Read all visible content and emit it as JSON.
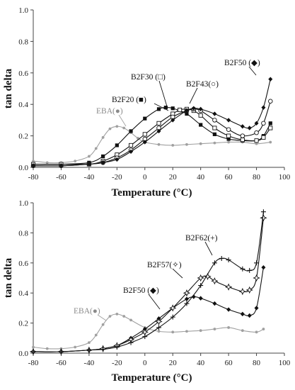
{
  "colors": {
    "dark": "#111111",
    "gray": "#a0a0a0",
    "gray_text": "#8a8a8a"
  },
  "chart_data": [
    {
      "type": "line",
      "xlabel": "Temperature (°C)",
      "ylabel": "tan delta",
      "xlim": [
        -80,
        100
      ],
      "ylim": [
        0,
        1.0
      ],
      "xticks": [
        -80,
        -60,
        -40,
        -20,
        0,
        20,
        40,
        60,
        80,
        100
      ],
      "yticks": [
        "0.0",
        "0.2",
        "0.4",
        "0.6",
        "0.8",
        "1.0"
      ],
      "grid": false,
      "series": [
        {
          "name": "EBA(●)",
          "color": "gray",
          "marker": "dot",
          "x": [
            -80,
            -70,
            -60,
            -50,
            -40,
            -35,
            -30,
            -25,
            -20,
            -15,
            -10,
            -5,
            0,
            10,
            20,
            30,
            40,
            50,
            60,
            70,
            80,
            90
          ],
          "y": [
            0.04,
            0.03,
            0.03,
            0.04,
            0.07,
            0.12,
            0.19,
            0.245,
            0.26,
            0.25,
            0.22,
            0.185,
            0.16,
            0.145,
            0.14,
            0.145,
            0.15,
            0.155,
            0.16,
            0.16,
            0.15,
            0.16
          ]
        },
        {
          "name": "B2F20 (■)",
          "color": "dark",
          "marker": "square",
          "x": [
            -80,
            -60,
            -40,
            -30,
            -20,
            -10,
            0,
            10,
            15,
            20,
            30,
            40,
            50,
            60,
            70,
            80,
            85,
            90
          ],
          "y": [
            0.02,
            0.02,
            0.03,
            0.07,
            0.14,
            0.23,
            0.31,
            0.37,
            0.38,
            0.375,
            0.34,
            0.27,
            0.21,
            0.18,
            0.17,
            0.17,
            0.2,
            0.28
          ]
        },
        {
          "name": "B2F30 (□)",
          "color": "dark",
          "marker": "open-square",
          "x": [
            -80,
            -60,
            -40,
            -30,
            -20,
            -10,
            0,
            10,
            20,
            25,
            30,
            35,
            40,
            50,
            60,
            70,
            80,
            85,
            90
          ],
          "y": [
            0.02,
            0.02,
            0.02,
            0.04,
            0.08,
            0.14,
            0.21,
            0.28,
            0.34,
            0.365,
            0.37,
            0.36,
            0.33,
            0.25,
            0.2,
            0.175,
            0.17,
            0.19,
            0.25
          ]
        },
        {
          "name": "B2F43(○)",
          "color": "dark",
          "marker": "open-circle",
          "x": [
            -80,
            -60,
            -40,
            -30,
            -20,
            -10,
            0,
            10,
            20,
            30,
            35,
            40,
            50,
            60,
            70,
            80,
            85,
            90
          ],
          "y": [
            0.01,
            0.01,
            0.02,
            0.03,
            0.06,
            0.11,
            0.18,
            0.25,
            0.32,
            0.36,
            0.37,
            0.36,
            0.3,
            0.24,
            0.2,
            0.22,
            0.28,
            0.42
          ]
        },
        {
          "name": "B2F50 (◆)",
          "color": "dark",
          "marker": "diamond",
          "x": [
            -80,
            -60,
            -40,
            -30,
            -20,
            -10,
            0,
            10,
            20,
            30,
            35,
            40,
            50,
            60,
            70,
            75,
            80,
            85,
            90
          ],
          "y": [
            0.01,
            0.01,
            0.02,
            0.03,
            0.05,
            0.1,
            0.16,
            0.23,
            0.3,
            0.36,
            0.375,
            0.37,
            0.34,
            0.3,
            0.26,
            0.25,
            0.28,
            0.38,
            0.56
          ]
        }
      ],
      "annotations": [
        {
          "text": "EBA(●)",
          "gray": true
        },
        {
          "text": "B2F20 (■)"
        },
        {
          "text": "B2F30 (□)"
        },
        {
          "text": "B2F43(○)"
        },
        {
          "text": "B2F50 (◆)"
        }
      ]
    },
    {
      "type": "line",
      "xlabel": "Temperature (°C)",
      "ylabel": "tan delta",
      "xlim": [
        -80,
        100
      ],
      "ylim": [
        0,
        1.0
      ],
      "xticks": [
        -80,
        -60,
        -40,
        -20,
        0,
        20,
        40,
        60,
        80,
        100
      ],
      "yticks": [
        "0.0",
        "0.2",
        "0.4",
        "0.6",
        "0.8",
        "1.0"
      ],
      "grid": false,
      "series": [
        {
          "name": "EBA(●)",
          "color": "gray",
          "marker": "dot",
          "x": [
            -80,
            -70,
            -60,
            -50,
            -40,
            -35,
            -30,
            -25,
            -20,
            -15,
            -10,
            0,
            10,
            20,
            30,
            40,
            50,
            60,
            70,
            80,
            85
          ],
          "y": [
            0.04,
            0.03,
            0.03,
            0.04,
            0.07,
            0.12,
            0.19,
            0.245,
            0.26,
            0.245,
            0.22,
            0.17,
            0.145,
            0.14,
            0.145,
            0.15,
            0.16,
            0.17,
            0.15,
            0.14,
            0.16
          ]
        },
        {
          "name": "B2F50 (◆)",
          "color": "dark",
          "marker": "diamond",
          "x": [
            -80,
            -60,
            -40,
            -30,
            -20,
            -10,
            0,
            10,
            20,
            30,
            35,
            40,
            50,
            60,
            70,
            75,
            80,
            85
          ],
          "y": [
            0.01,
            0.01,
            0.02,
            0.03,
            0.05,
            0.1,
            0.16,
            0.23,
            0.3,
            0.36,
            0.375,
            0.365,
            0.33,
            0.29,
            0.26,
            0.25,
            0.3,
            0.57
          ]
        },
        {
          "name": "B2F57(✧)",
          "color": "dark",
          "marker": "star",
          "x": [
            -80,
            -60,
            -40,
            -30,
            -20,
            -10,
            0,
            10,
            20,
            30,
            40,
            45,
            50,
            60,
            70,
            75,
            80,
            85
          ],
          "y": [
            0.01,
            0.01,
            0.02,
            0.03,
            0.05,
            0.09,
            0.14,
            0.21,
            0.3,
            0.4,
            0.5,
            0.51,
            0.48,
            0.44,
            0.41,
            0.42,
            0.5,
            0.9
          ]
        },
        {
          "name": "B2F62(+)",
          "color": "dark",
          "marker": "plus",
          "x": [
            -80,
            -60,
            -40,
            -30,
            -20,
            -10,
            0,
            10,
            20,
            30,
            40,
            50,
            55,
            60,
            70,
            75,
            80,
            85
          ],
          "y": [
            0.01,
            0.01,
            0.02,
            0.025,
            0.04,
            0.07,
            0.11,
            0.17,
            0.24,
            0.33,
            0.45,
            0.6,
            0.63,
            0.62,
            0.56,
            0.55,
            0.6,
            0.94
          ]
        }
      ],
      "annotations": [
        {
          "text": "EBA(●)",
          "gray": true
        },
        {
          "text": "B2F50 (◆)"
        },
        {
          "text": "B2F57(✧)"
        },
        {
          "text": "B2F62(+)"
        }
      ]
    }
  ]
}
